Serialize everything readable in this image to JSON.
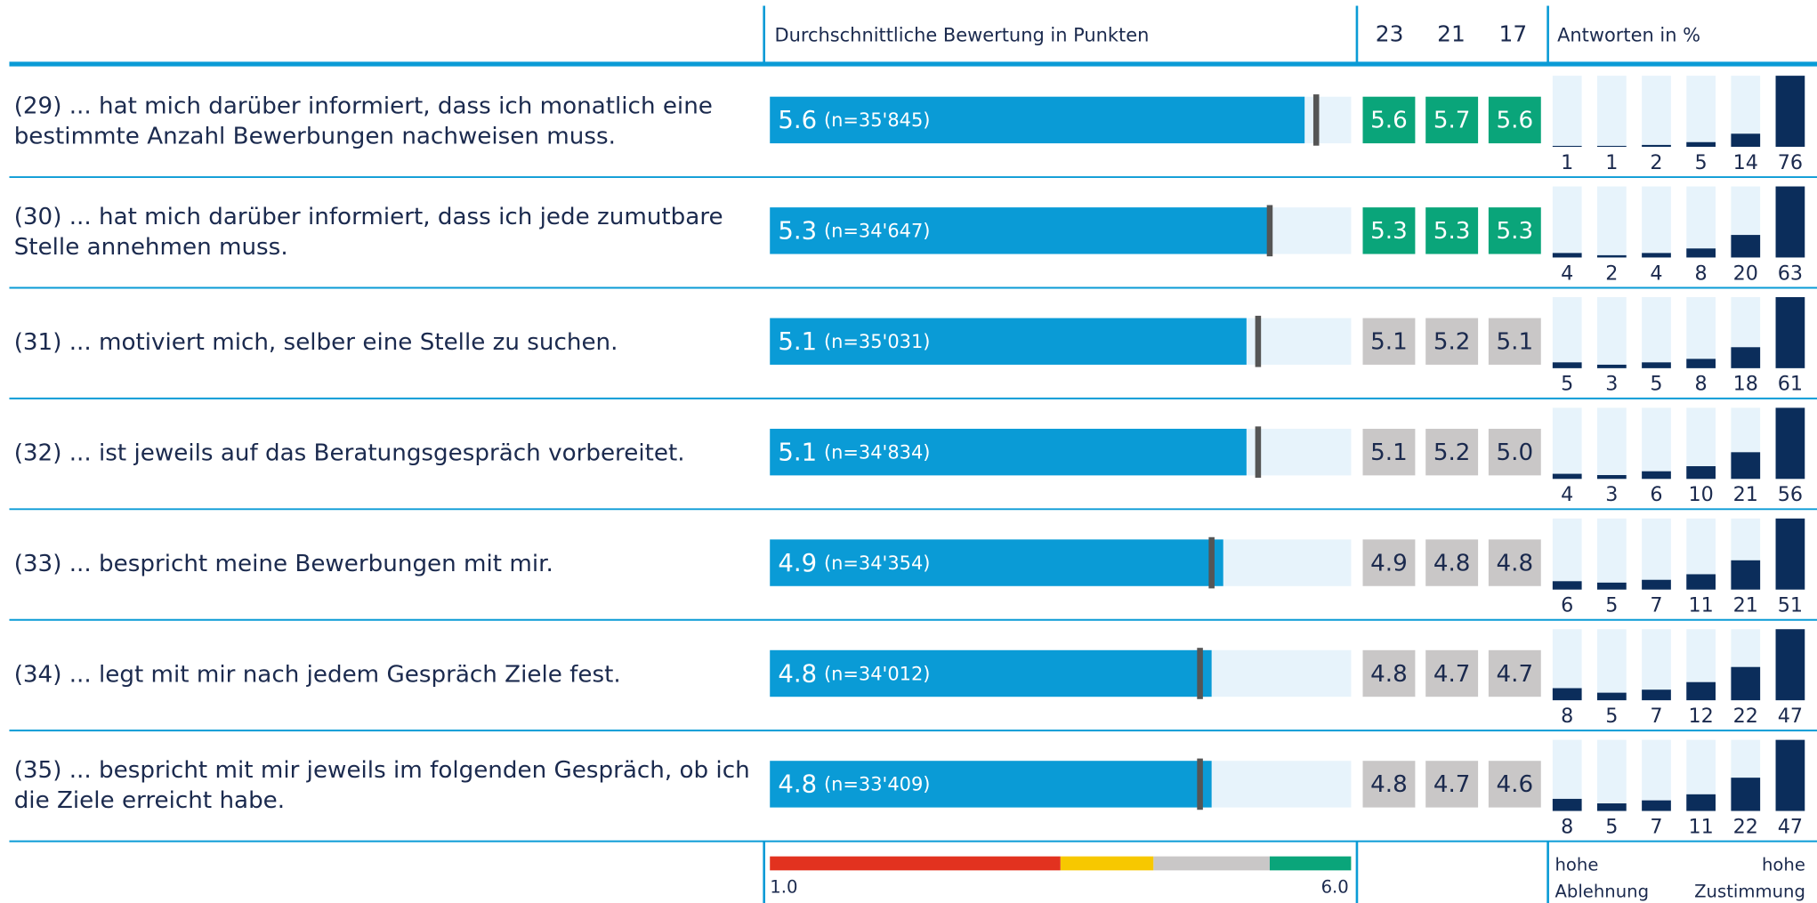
{
  "header": {
    "mean_title": "Durchschnittliche Bewertung in Punkten",
    "years": [
      "23",
      "21",
      "17"
    ],
    "dist_title": "Antworten in %"
  },
  "scale": {
    "min": {
      "value": 1,
      "label": "1.0"
    },
    "max": {
      "value": 6,
      "label": "6.0"
    },
    "bands": [
      {
        "to": 3.5,
        "color": "#e2321f"
      },
      {
        "to": 4.3,
        "color": "#f7c800"
      },
      {
        "to": 5.3,
        "color": "#c9c7c7"
      },
      {
        "to": 6,
        "color": "#0aa57a"
      }
    ]
  },
  "rows": [
    {
      "label": [
        "(29) ... hat mich darüber informiert, dass ich monatlich eine",
        "bestimmte Anzahl Bewerbungen nachweisen muss."
      ],
      "mean": 5.6,
      "n": "(n=35'845)",
      "years": [
        5.6,
        5.7,
        5.6
      ],
      "dist": [
        1,
        1,
        2,
        5,
        14,
        76
      ]
    },
    {
      "label": [
        "(30) ... hat mich darüber informiert, dass ich jede zumutbare",
        "Stelle annehmen muss."
      ],
      "mean": 5.3,
      "n": "(n=34'647)",
      "years": [
        5.3,
        5.3,
        5.3
      ],
      "dist": [
        4,
        2,
        4,
        8,
        20,
        63
      ]
    },
    {
      "label": [
        "(31) ... motiviert mich, selber eine Stelle zu suchen."
      ],
      "mean": 5.1,
      "n": "(n=35'031)",
      "years": [
        5.1,
        5.2,
        5.1
      ],
      "dist": [
        5,
        3,
        5,
        8,
        18,
        61
      ]
    },
    {
      "label": [
        "(32) ... ist jeweils auf das Beratungsgespräch vorbereitet."
      ],
      "mean": 5.1,
      "n": "(n=34'834)",
      "years": [
        5.1,
        5.2,
        {
          "value": 5,
          "label": "5.0"
        }
      ],
      "dist": [
        4,
        3,
        6,
        10,
        21,
        56
      ]
    },
    {
      "label": [
        "(33) ... bespricht meine Bewerbungen mit mir."
      ],
      "mean": 4.9,
      "n": "(n=34'354)",
      "years": [
        4.9,
        4.8,
        4.8
      ],
      "dist": [
        6,
        5,
        7,
        11,
        21,
        51
      ]
    },
    {
      "label": [
        "(34) ... legt mit mir nach jedem Gespräch Ziele fest."
      ],
      "mean": 4.8,
      "n": "(n=34'012)",
      "years": [
        4.8,
        4.7,
        4.7
      ],
      "dist": [
        8,
        5,
        7,
        12,
        22,
        47
      ]
    },
    {
      "label": [
        "(35) ... bespricht mit mir jeweils im folgenden Gespräch, ob ich",
        "die Ziele erreicht habe."
      ],
      "mean": 4.8,
      "n": "(n=33'409)",
      "years": [
        4.8,
        4.7,
        4.6
      ],
      "dist": [
        8,
        5,
        7,
        11,
        22,
        47
      ]
    }
  ],
  "footer": {
    "left": [
      "hohe",
      "Ablehnung"
    ],
    "right": [
      "hohe",
      "Zustimmung"
    ]
  }
}
